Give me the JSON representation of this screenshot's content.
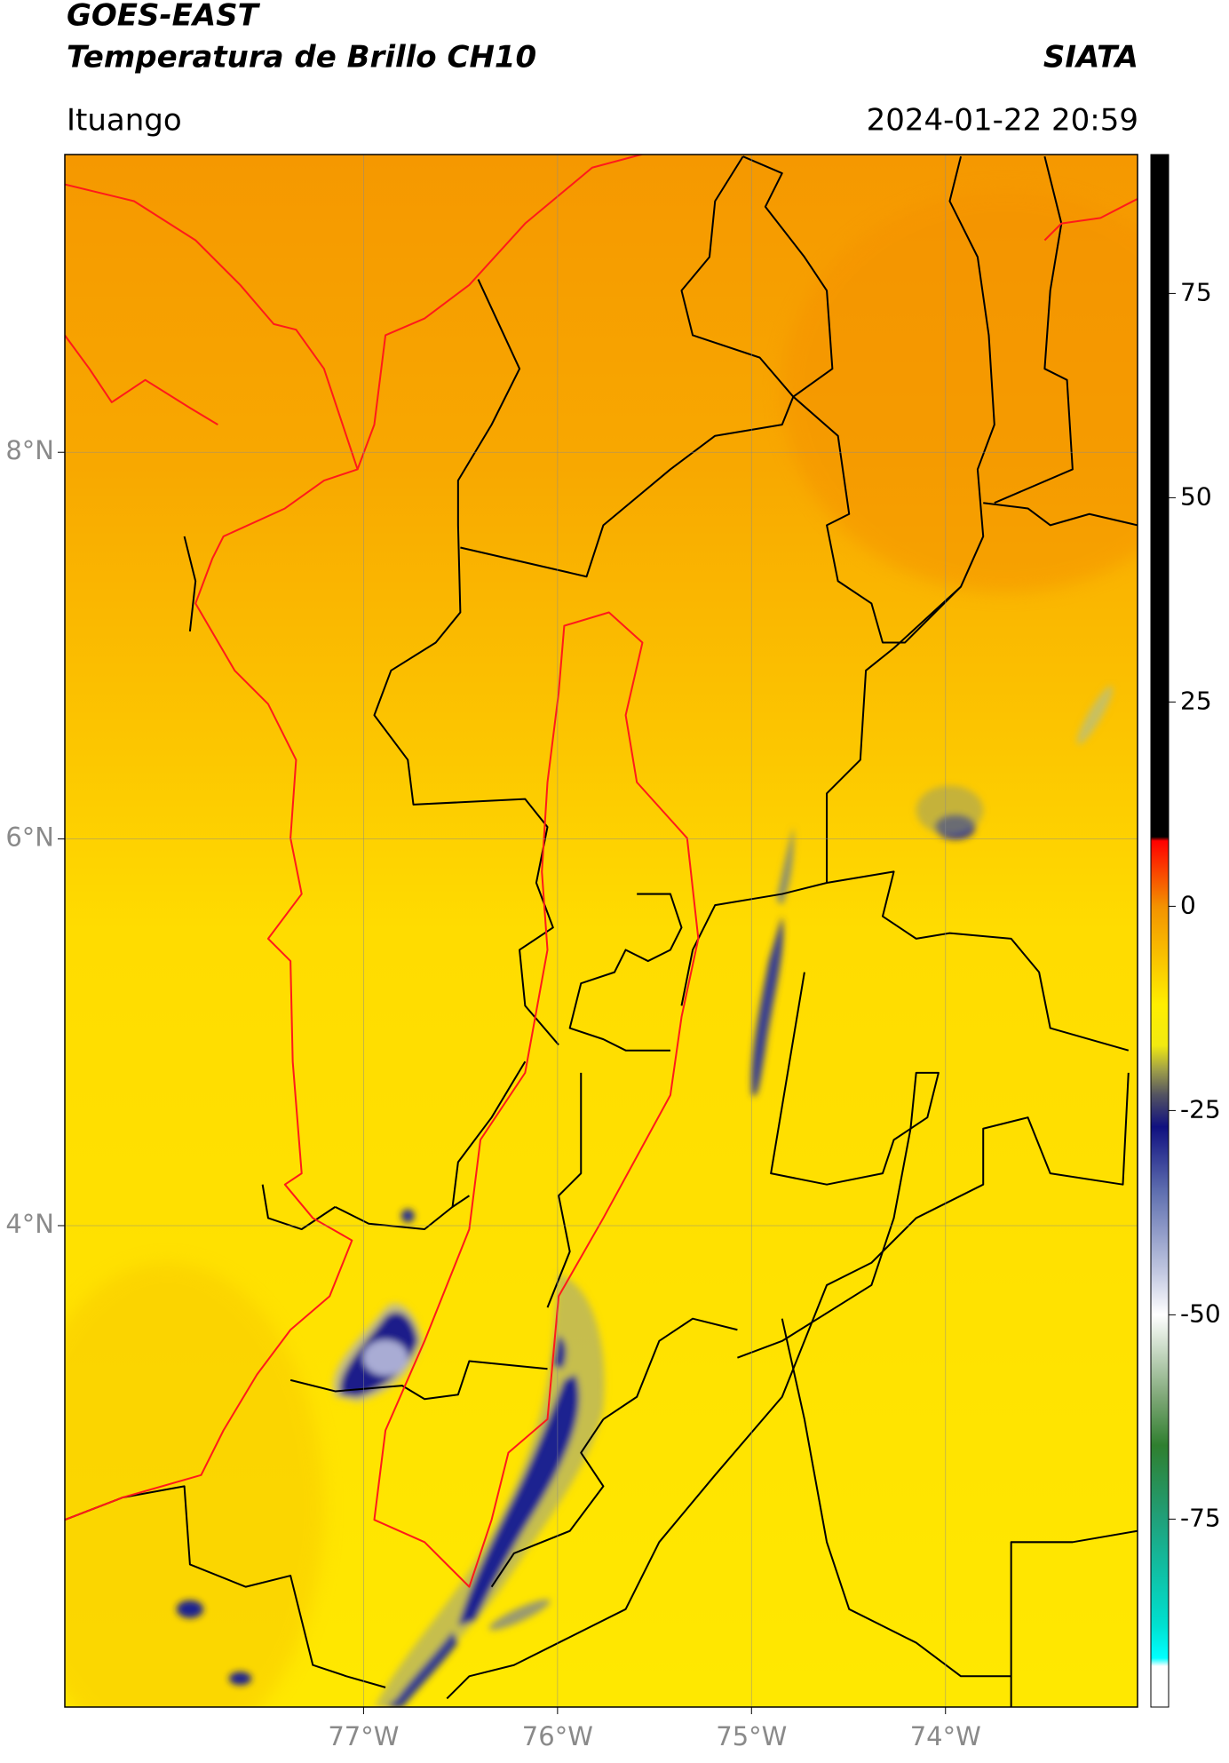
{
  "chart_data": {
    "type": "map",
    "title": "GOES-EAST",
    "subtitle": "Temperatura de Brillo CH10",
    "source": "SIATA",
    "location": "Ituango",
    "timestamp": "2024-01-22 20:59",
    "xlim": [
      -78.54,
      -73.01
    ],
    "ylim": [
      1.51,
      9.54
    ],
    "xticks": [
      {
        "value": -77,
        "label": "77°W"
      },
      {
        "value": -76,
        "label": "76°W"
      },
      {
        "value": -75,
        "label": "75°W"
      },
      {
        "value": -74,
        "label": "74°W"
      }
    ],
    "yticks": [
      {
        "value": 4,
        "label": "4°N"
      },
      {
        "value": 6,
        "label": "6°N"
      },
      {
        "value": 8,
        "label": "8°N"
      }
    ],
    "grid": true,
    "colorbar": {
      "lim": [
        -98,
        92
      ],
      "ticks": [
        -75,
        -50,
        -25,
        0,
        25,
        50,
        75
      ],
      "colorscale": [
        {
          "value": 92,
          "color": "#000000"
        },
        {
          "value": 8.5,
          "color": "#000000"
        },
        {
          "value": 8,
          "color": "#ff0000"
        },
        {
          "value": 0,
          "color": "#f39200"
        },
        {
          "value": -12,
          "color": "#ffee00"
        },
        {
          "value": -17,
          "color": "#f2ea10"
        },
        {
          "value": -20,
          "color": "#a0a048"
        },
        {
          "value": -23,
          "color": "#555560"
        },
        {
          "value": -27,
          "color": "#101080"
        },
        {
          "value": -35,
          "color": "#6070b0"
        },
        {
          "value": -45,
          "color": "#c4cae2"
        },
        {
          "value": -50,
          "color": "#ffffff"
        },
        {
          "value": -60,
          "color": "#80a878"
        },
        {
          "value": -66,
          "color": "#2f7f2f"
        },
        {
          "value": -75,
          "color": "#20a07a"
        },
        {
          "value": -88,
          "color": "#00e0d0"
        },
        {
          "value": -92,
          "color": "#00ffff"
        },
        {
          "value": -93,
          "color": "#ffffff"
        },
        {
          "value": -98,
          "color": "#ffffff"
        }
      ]
    }
  }
}
